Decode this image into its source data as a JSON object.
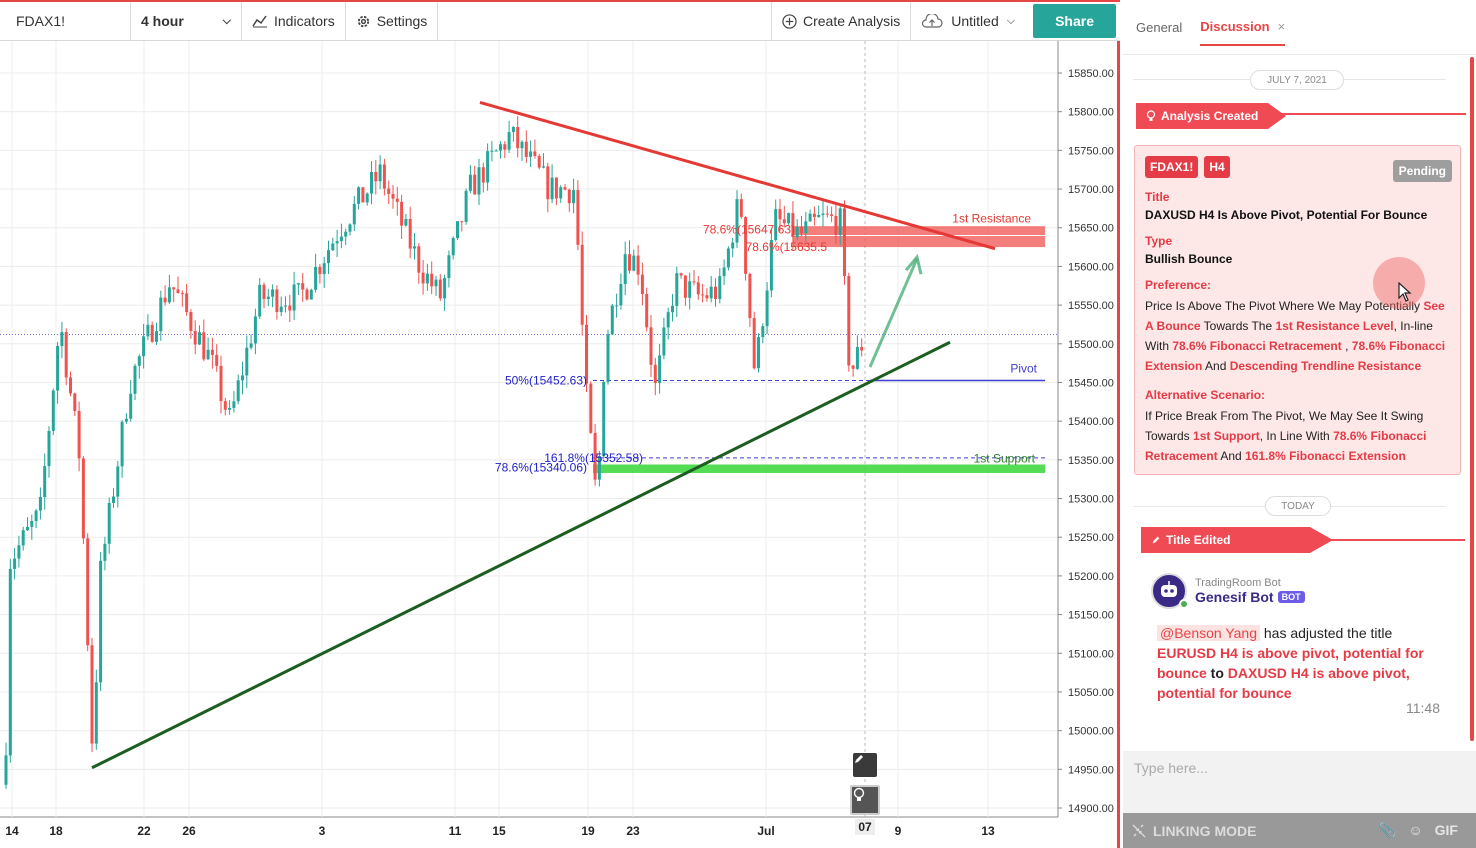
{
  "toolbar": {
    "symbol": "FDAX1!",
    "interval": "4 hour",
    "indicators_label": "Indicators",
    "settings_label": "Settings",
    "create_analysis_label": "Create Analysis",
    "untitled_label": "Untitled",
    "share_label": "Share"
  },
  "chart": {
    "price_ticks": [
      "15850.00",
      "15800.00",
      "15750.00",
      "15700.00",
      "15650.00",
      "15600.00",
      "15550.00",
      "15500.00",
      "15450.00",
      "15400.00",
      "15350.00",
      "15300.00",
      "15250.00",
      "15200.00",
      "15150.00",
      "15100.00",
      "15050.00",
      "15000.00",
      "14950.00",
      "14900.00"
    ],
    "date_ticks": [
      "14",
      "18",
      "22",
      "26",
      "3",
      "11",
      "15",
      "19",
      "23",
      "Jul",
      "9",
      "13"
    ],
    "current_date_badge": "07",
    "annotations": {
      "resistance": "1st Resistance",
      "support": "1st Support",
      "pivot": "Pivot",
      "fib_50": "50%(15452.63)",
      "fib_1618": "161.8%(15352.58)",
      "fib_786_low": "78.6%(15340.06)",
      "fib_786_high1": "78.6%(15647.63)",
      "fib_786_high2": "78.6%(15635.5"
    },
    "colors": {
      "bull": "#26a69a",
      "bear": "#ef5350",
      "trend_down": "#e53935",
      "trend_up": "#1b5e20",
      "pivot": "#3f3fcf",
      "resistance_zone": "#ef5350",
      "support_zone": "#43d843"
    }
  },
  "panel": {
    "tab_general": "General",
    "tab_discussion": "Discussion",
    "tab_close": "×",
    "date1": "JULY 7, 2021",
    "event1": "Analysis Created",
    "card": {
      "symbol_badge": "FDAX1!",
      "tf_badge": "H4",
      "status": "Pending",
      "title_label": "Title",
      "title_value": "DAXUSD H4 Is Above Pivot, Potential For Bounce",
      "type_label": "Type",
      "type_value": "Bullish Bounce",
      "pref_label": "Preference:",
      "pref_1": "Price Is Above The Pivot Where We May Potentially ",
      "pref_hl1": "See A Bounce",
      "pref_2": " Towards The ",
      "pref_hl2": "1st Resistance Level",
      "pref_3": ", In-line With ",
      "pref_hl3": "78.6% Fibonacci Retracement",
      "pref_4": " , ",
      "pref_hl4": "78.6% Fibonacci Extension",
      "pref_5": " And ",
      "pref_hl5": "Descending Trendline Resistance",
      "alt_label": "Alternative Scenario:",
      "alt_1": "If Price Break From The Pivot, We May See It Swing Towards ",
      "alt_hl1": "1st Support",
      "alt_2": ", In Line With ",
      "alt_hl2": "78.6% Fibonacci Retracement",
      "alt_3": " And ",
      "alt_hl3": "161.8% Fibonacci Extension"
    },
    "date2": "TODAY",
    "event2": "Title Edited",
    "bot": {
      "sub": "TradingRoom Bot",
      "name": "Genesif Bot",
      "tag": "BOT"
    },
    "message": {
      "mention": "@Benson Yang",
      "text1": " has adjusted the title ",
      "old_title": "EURUSD H4 is above pivot, potential for bounce",
      "text2": " to ",
      "new_title": "DAXUSD H4 is above pivot, potential for bounce",
      "time": "11:48"
    },
    "input_placeholder": "Type here...",
    "linking_mode": "LINKING MODE",
    "gif_label": "GIF"
  }
}
